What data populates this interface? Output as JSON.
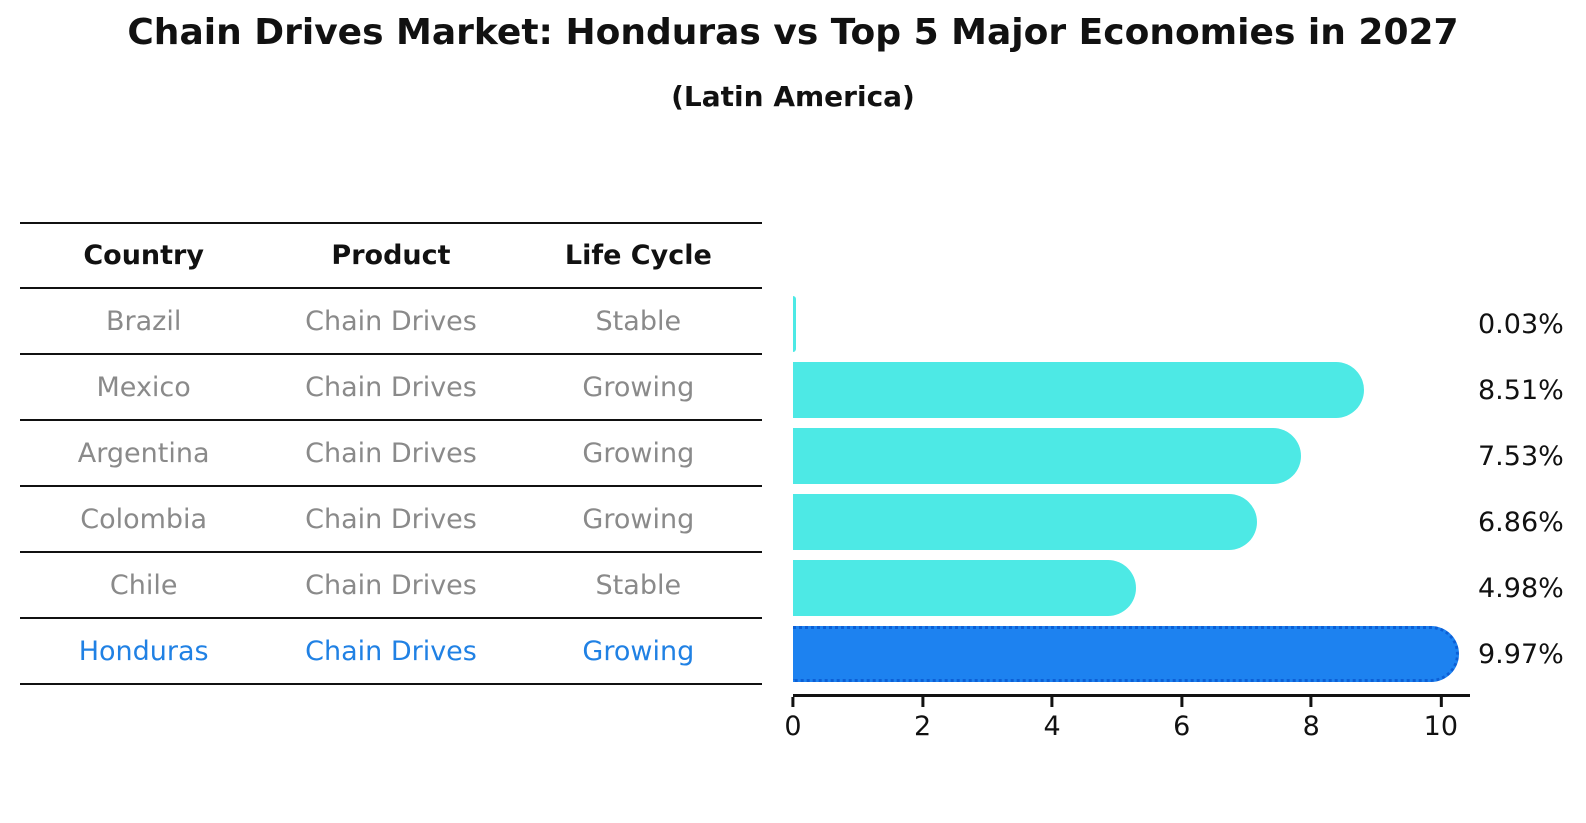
{
  "title": "Chain Drives Market: Honduras vs Top 5 Major Economies in 2027",
  "subtitle": "(Latin America)",
  "table": {
    "headers": [
      "Country",
      "Product",
      "Life Cycle"
    ],
    "rows": [
      {
        "country": "Brazil",
        "product": "Chain Drives",
        "life_cycle": "Stable"
      },
      {
        "country": "Mexico",
        "product": "Chain Drives",
        "life_cycle": "Growing"
      },
      {
        "country": "Argentina",
        "product": "Chain Drives",
        "life_cycle": "Growing"
      },
      {
        "country": "Colombia",
        "product": "Chain Drives",
        "life_cycle": "Growing"
      },
      {
        "country": "Chile",
        "product": "Chain Drives",
        "life_cycle": "Stable"
      },
      {
        "country": "Honduras",
        "product": "Chain Drives",
        "life_cycle": "Growing"
      }
    ],
    "highlighted_row": "Honduras"
  },
  "chart_data": {
    "type": "bar",
    "orientation": "horizontal",
    "title": "Chain Drives Market: Honduras vs Top 5 Major Economies in 2027",
    "subtitle": "(Latin America)",
    "categories": [
      "Brazil",
      "Mexico",
      "Argentina",
      "Colombia",
      "Chile",
      "Honduras"
    ],
    "values": [
      0.03,
      8.51,
      7.53,
      6.86,
      4.98,
      9.97
    ],
    "value_labels": [
      "0.03%",
      "8.51%",
      "7.53%",
      "6.86%",
      "4.98%",
      "9.97%"
    ],
    "xlabel": "",
    "ylabel": "",
    "xlim": [
      0,
      10.45
    ],
    "x_ticks": [
      0,
      2,
      4,
      6,
      8,
      10
    ],
    "x_tick_labels": [
      "0",
      "2",
      "4",
      "6",
      "8",
      "10"
    ],
    "grid": false,
    "legend": false,
    "highlight_index": 5,
    "colors": {
      "bar_default": "#4DE9E5",
      "bar_highlight": "#1D82F0",
      "highlight_text": "#2081E4",
      "row_text": "#8A8A8A",
      "axis": "#111111"
    }
  }
}
